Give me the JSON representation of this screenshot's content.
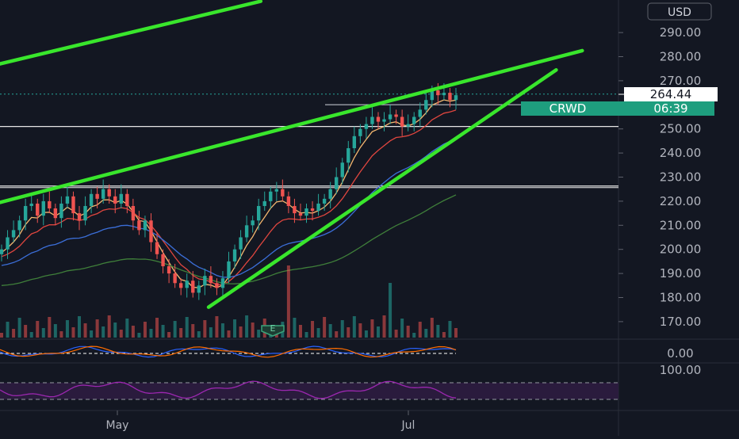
{
  "currency": "USD",
  "ticker": "CRWD",
  "last_price": "264.44",
  "countdown": "06:39",
  "earnings_marker": "E",
  "colors": {
    "background": "#131722",
    "trendline": "#39e62c",
    "up_candle": "#26a69a",
    "down_candle": "#ef5350",
    "ema_fast": "#f5b870",
    "ema_mid": "#e0463f",
    "ema_slow": "#3b6ed8",
    "ema_long": "#3f7f3a",
    "rsi_line": "#9c27b0",
    "rsi_band": "#2a1b3d",
    "ticker_badge": "#1e9e7e",
    "axis_text": "#b2b5be"
  },
  "chart_data": {
    "type": "candlestick",
    "price_axis": {
      "ticks": [
        "290.00",
        "280.00",
        "270.00",
        "260.00",
        "250.00",
        "240.00",
        "230.00",
        "220.00",
        "210.00",
        "200.00",
        "190.00",
        "180.00",
        "170.00"
      ],
      "range": [
        167,
        300
      ]
    },
    "time_axis": {
      "labels": [
        "May",
        "Jul"
      ]
    },
    "last_price": 264.44,
    "horizontal_levels": [
      251,
      226.3,
      263
    ],
    "trendlines": [
      {
        "from": [
          "2021-03-26",
          277
        ],
        "to": [
          "2021-05-25",
          303
        ]
      },
      {
        "from": [
          "2021-03-26",
          219.5
        ],
        "to": [
          "2021-08-07",
          282.5
        ]
      },
      {
        "from": [
          "2021-05-13",
          176
        ],
        "to": [
          "2021-08-01",
          274.5
        ]
      }
    ],
    "oscillator": {
      "zero_label": "0.00"
    },
    "rsi": {
      "label": "100.00"
    },
    "ohlc_approx": {
      "start": "2021-03-26",
      "closes": [
        200,
        205,
        208,
        212,
        218,
        219,
        214,
        220,
        217,
        213,
        219,
        222,
        215,
        212,
        218,
        223,
        221,
        225,
        222,
        219,
        223,
        218,
        212,
        208,
        212,
        203,
        198,
        193,
        190,
        186,
        184,
        187,
        182,
        185,
        189,
        186,
        184,
        188,
        195,
        200,
        205,
        210,
        212,
        218,
        220,
        224,
        225,
        222,
        218,
        215,
        214,
        217,
        216,
        219,
        221,
        225,
        230,
        236,
        242,
        247,
        250,
        252,
        255,
        253,
        254,
        256,
        255,
        251,
        252,
        255,
        258,
        262,
        266,
        264,
        265,
        262,
        264
      ]
    }
  }
}
